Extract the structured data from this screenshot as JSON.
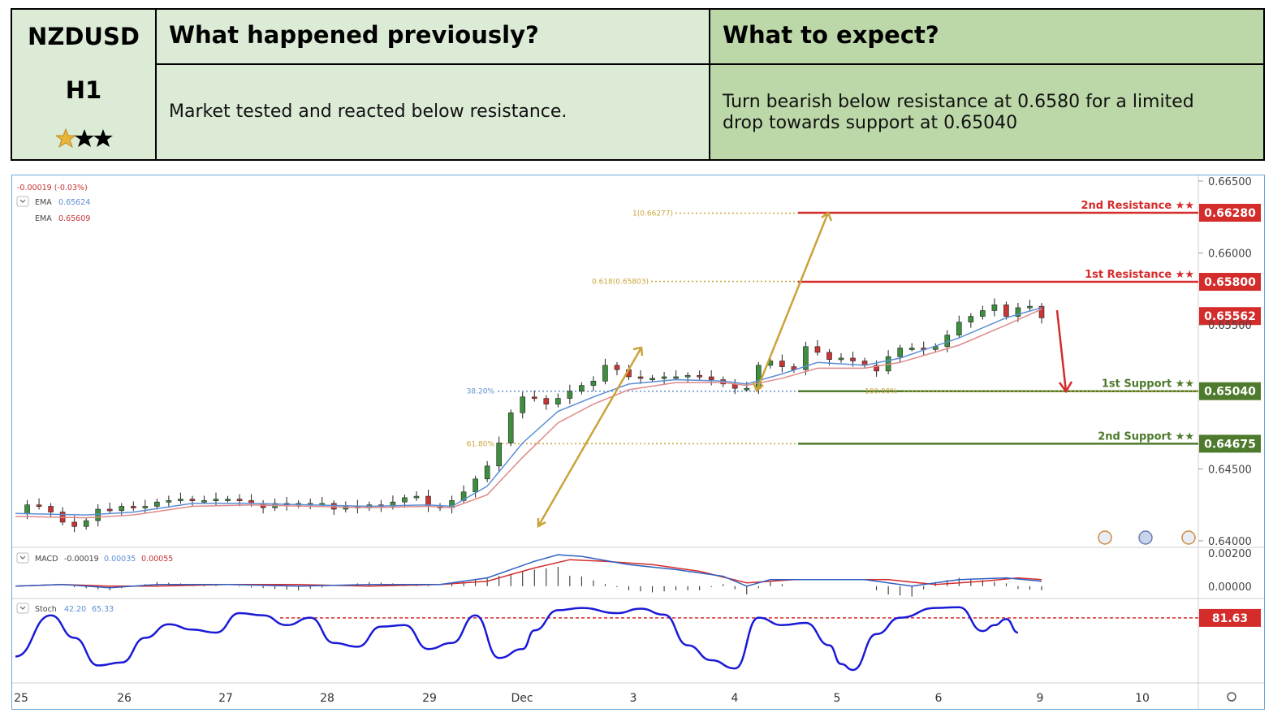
{
  "header": {
    "symbol": "NZDUSD",
    "timeframe": "H1",
    "rating": {
      "filled": 1,
      "total": 3
    },
    "previous_title": "What happened previously?",
    "previous_text": "Market tested and reacted below resistance.",
    "expect_title": "What to expect?",
    "expect_text_1": "Turn bearish below resistance at 0.6580 for a limited",
    "expect_text_2": "drop towards support at 0.65040"
  },
  "legend": {
    "change": "-0.00019 (-0.03%)",
    "ema1_label": "EMA",
    "ema1_value": "0.65624",
    "ema2_label": "EMA",
    "ema2_value": "0.65609",
    "macd_label": "MACD",
    "macd_v1": "-0.00019",
    "macd_v2": "0.00035",
    "macd_v3": "0.00055",
    "stoch_label": "Stoch",
    "stoch_v1": "42.20",
    "stoch_v2": "65.33"
  },
  "colors": {
    "resistance": "#d42b2b",
    "support": "#4d7a2c",
    "fib": "#c9a43a",
    "fib_blue": "#5b8fd4",
    "ema_fast": "#5b8fd4",
    "ema_slow": "#e08a8a",
    "stoch": "#1a1ad6",
    "candle_up": "#3d8f3d",
    "candle_down": "#c73535"
  },
  "chart_data": {
    "type": "line",
    "x_labels": [
      "25",
      "26",
      "27",
      "28",
      "29",
      "Dec",
      "3",
      "4",
      "5",
      "6",
      "9",
      "10"
    ],
    "y_ticks": [
      "0.66500",
      "0.66000",
      "0.65500",
      "0.64500",
      "0.64000"
    ],
    "ylim": [
      0.64,
      0.665
    ],
    "levels": [
      {
        "name": "2nd Resistance ★★",
        "value": 0.6628,
        "tag": "0.66280",
        "kind": "resistance"
      },
      {
        "name": "1st Resistance ★★",
        "value": 0.658,
        "tag": "0.65800",
        "kind": "resistance"
      },
      {
        "name": "1st Support ★★",
        "value": 0.6504,
        "tag": "0.65040",
        "kind": "support"
      },
      {
        "name": "2nd Support ★★",
        "value": 0.64675,
        "tag": "0.64675",
        "kind": "support"
      }
    ],
    "current_price": {
      "value": 0.65562,
      "tag": "0.65562"
    },
    "fib_levels": [
      {
        "label": "1(0.66277)",
        "value": 0.66277
      },
      {
        "label": "0.618(0.65803)",
        "value": 0.65803
      },
      {
        "label": "38.20%",
        "value": 0.6504
      },
      {
        "label": "61.80%",
        "value": 0.64675
      },
      {
        "label": "100.00%",
        "value": 0.6504
      }
    ],
    "price_series": [
      [
        0,
        0.6419
      ],
      [
        1,
        0.6425
      ],
      [
        2,
        0.6424
      ],
      [
        3,
        0.642
      ],
      [
        4,
        0.6413
      ],
      [
        5,
        0.641
      ],
      [
        6,
        0.6414
      ],
      [
        7,
        0.6422
      ],
      [
        8,
        0.6421
      ],
      [
        9,
        0.6424
      ],
      [
        10,
        0.6423
      ],
      [
        11,
        0.6424
      ],
      [
        12,
        0.6427
      ],
      [
        13,
        0.6428
      ],
      [
        14,
        0.6429
      ],
      [
        15,
        0.6428
      ],
      [
        16,
        0.6428
      ],
      [
        17,
        0.6429
      ],
      [
        18,
        0.6429
      ],
      [
        19,
        0.6428
      ],
      [
        20,
        0.6426
      ],
      [
        21,
        0.6423
      ],
      [
        22,
        0.6426
      ],
      [
        23,
        0.6425
      ],
      [
        24,
        0.6426
      ],
      [
        25,
        0.6426
      ],
      [
        26,
        0.6426
      ],
      [
        27,
        0.6422
      ],
      [
        28,
        0.6424
      ],
      [
        29,
        0.6423
      ],
      [
        30,
        0.6425
      ],
      [
        31,
        0.6424
      ],
      [
        32,
        0.6427
      ],
      [
        33,
        0.643
      ],
      [
        34,
        0.6431
      ],
      [
        35,
        0.6424
      ],
      [
        36,
        0.6423
      ],
      [
        37,
        0.6428
      ],
      [
        38,
        0.6434
      ],
      [
        39,
        0.6443
      ],
      [
        40,
        0.6452
      ],
      [
        41,
        0.6468
      ],
      [
        42,
        0.6489
      ],
      [
        43,
        0.65
      ],
      [
        44,
        0.6499
      ],
      [
        45,
        0.6495
      ],
      [
        46,
        0.6499
      ],
      [
        47,
        0.6504
      ],
      [
        48,
        0.6508
      ],
      [
        49,
        0.6511
      ],
      [
        50,
        0.6522
      ],
      [
        51,
        0.6519
      ],
      [
        52,
        0.6514
      ],
      [
        53,
        0.6513
      ],
      [
        54,
        0.6513
      ],
      [
        55,
        0.6514
      ],
      [
        56,
        0.6514
      ],
      [
        57,
        0.6515
      ],
      [
        58,
        0.6514
      ],
      [
        59,
        0.6512
      ],
      [
        60,
        0.6509
      ],
      [
        61,
        0.6506
      ],
      [
        62,
        0.6506
      ],
      [
        63,
        0.6522
      ],
      [
        64,
        0.6525
      ],
      [
        65,
        0.6521
      ],
      [
        66,
        0.6519
      ],
      [
        67,
        0.6535
      ],
      [
        68,
        0.6531
      ],
      [
        69,
        0.6526
      ],
      [
        70,
        0.6527
      ],
      [
        71,
        0.6525
      ],
      [
        72,
        0.6522
      ],
      [
        73,
        0.6518
      ],
      [
        74,
        0.6528
      ],
      [
        75,
        0.6534
      ],
      [
        76,
        0.6534
      ],
      [
        77,
        0.6533
      ],
      [
        78,
        0.6535
      ],
      [
        79,
        0.6543
      ],
      [
        80,
        0.6552
      ],
      [
        81,
        0.6556
      ],
      [
        82,
        0.656
      ],
      [
        83,
        0.6564
      ],
      [
        84,
        0.6556
      ],
      [
        85,
        0.6562
      ],
      [
        86,
        0.6563
      ],
      [
        87,
        0.6555
      ]
    ],
    "ema_fast": [
      [
        0,
        0.6419
      ],
      [
        6,
        0.6418
      ],
      [
        10,
        0.642
      ],
      [
        15,
        0.6426
      ],
      [
        20,
        0.6426
      ],
      [
        25,
        0.6425
      ],
      [
        30,
        0.6424
      ],
      [
        35,
        0.6425
      ],
      [
        37,
        0.6424
      ],
      [
        40,
        0.6438
      ],
      [
        43,
        0.6468
      ],
      [
        46,
        0.649
      ],
      [
        49,
        0.65
      ],
      [
        52,
        0.6509
      ],
      [
        56,
        0.6512
      ],
      [
        60,
        0.6511
      ],
      [
        62,
        0.6509
      ],
      [
        65,
        0.6516
      ],
      [
        68,
        0.6524
      ],
      [
        72,
        0.6522
      ],
      [
        75,
        0.6527
      ],
      [
        80,
        0.6541
      ],
      [
        84,
        0.6555
      ],
      [
        87,
        0.6562
      ]
    ],
    "ema_slow": [
      [
        0,
        0.6417
      ],
      [
        6,
        0.6416
      ],
      [
        10,
        0.6418
      ],
      [
        15,
        0.6424
      ],
      [
        20,
        0.6425
      ],
      [
        25,
        0.6424
      ],
      [
        30,
        0.6423
      ],
      [
        35,
        0.6424
      ],
      [
        37,
        0.6423
      ],
      [
        40,
        0.6432
      ],
      [
        43,
        0.6458
      ],
      [
        46,
        0.6482
      ],
      [
        49,
        0.6495
      ],
      [
        52,
        0.6505
      ],
      [
        56,
        0.651
      ],
      [
        60,
        0.651
      ],
      [
        62,
        0.6508
      ],
      [
        65,
        0.6513
      ],
      [
        68,
        0.652
      ],
      [
        72,
        0.652
      ],
      [
        75,
        0.6524
      ],
      [
        80,
        0.6536
      ],
      [
        84,
        0.655
      ],
      [
        87,
        0.6561
      ]
    ],
    "macd_ylim": [
      -0.0005,
      0.0021
    ],
    "macd_ticks": [
      "0.00200",
      "0.00000"
    ],
    "macd_series": [
      [
        0,
        0.0
      ],
      [
        4,
        0.0001
      ],
      [
        8,
        -0.0001
      ],
      [
        12,
        0.0001
      ],
      [
        18,
        0.0001
      ],
      [
        24,
        0.0
      ],
      [
        30,
        0.0001
      ],
      [
        36,
        0.0001
      ],
      [
        40,
        0.0005
      ],
      [
        44,
        0.0015
      ],
      [
        46,
        0.0019
      ],
      [
        48,
        0.0018
      ],
      [
        52,
        0.0013
      ],
      [
        56,
        0.001
      ],
      [
        60,
        0.0006
      ],
      [
        62,
        0.0
      ],
      [
        64,
        0.0004
      ],
      [
        68,
        0.0004
      ],
      [
        72,
        0.0004
      ],
      [
        76,
        0.0
      ],
      [
        80,
        0.0004
      ],
      [
        84,
        0.0005
      ],
      [
        87,
        0.0003
      ]
    ],
    "macd_signal": [
      [
        0,
        0.0
      ],
      [
        4,
        0.0001
      ],
      [
        8,
        0.0
      ],
      [
        12,
        0.0
      ],
      [
        18,
        0.0001
      ],
      [
        24,
        0.0001
      ],
      [
        30,
        0.0
      ],
      [
        36,
        0.0001
      ],
      [
        40,
        0.0003
      ],
      [
        44,
        0.0011
      ],
      [
        47,
        0.0016
      ],
      [
        50,
        0.0015
      ],
      [
        54,
        0.0013
      ],
      [
        58,
        0.0009
      ],
      [
        62,
        0.0002
      ],
      [
        66,
        0.0004
      ],
      [
        70,
        0.0004
      ],
      [
        74,
        0.0004
      ],
      [
        78,
        0.0001
      ],
      [
        82,
        0.0003
      ],
      [
        85,
        0.0005
      ],
      [
        87,
        0.0004
      ]
    ],
    "stoch_ylim": [
      0,
      100
    ],
    "stoch_level": {
      "value": 81.63,
      "tag": "81.63"
    },
    "stoch_series": [
      [
        0,
        30
      ],
      [
        3,
        85
      ],
      [
        5,
        55
      ],
      [
        7,
        18
      ],
      [
        9,
        22
      ],
      [
        11,
        55
      ],
      [
        13,
        73
      ],
      [
        15,
        66
      ],
      [
        17,
        62
      ],
      [
        19,
        88
      ],
      [
        21,
        85
      ],
      [
        23,
        72
      ],
      [
        25,
        82
      ],
      [
        27,
        48
      ],
      [
        29,
        43
      ],
      [
        31,
        70
      ],
      [
        33,
        72
      ],
      [
        35,
        40
      ],
      [
        37,
        48
      ],
      [
        39,
        85
      ],
      [
        41,
        28
      ],
      [
        43,
        40
      ],
      [
        44,
        65
      ],
      [
        46,
        92
      ],
      [
        48,
        95
      ],
      [
        51,
        88
      ],
      [
        53,
        94
      ],
      [
        55,
        86
      ],
      [
        57,
        45
      ],
      [
        59,
        25
      ],
      [
        61,
        14
      ],
      [
        63,
        82
      ],
      [
        65,
        72
      ],
      [
        67,
        75
      ],
      [
        69,
        45
      ],
      [
        70,
        20
      ],
      [
        71,
        12
      ],
      [
        73,
        60
      ],
      [
        75,
        82
      ],
      [
        78,
        95
      ],
      [
        80,
        96
      ],
      [
        82,
        64
      ],
      [
        83,
        72
      ],
      [
        84,
        80
      ],
      [
        85,
        62
      ]
    ]
  }
}
